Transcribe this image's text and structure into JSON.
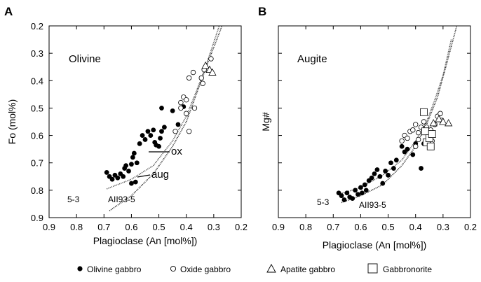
{
  "chart_data": [
    {
      "panel": "A",
      "type": "scatter",
      "title": "Olivine",
      "xlabel": "Plagioclase (An [mol%])",
      "ylabel": "Fo (mol%)",
      "x_reversed": true,
      "y_reversed": true,
      "xlim": [
        0.9,
        0.2
      ],
      "ylim": [
        0.9,
        0.2
      ],
      "xticks": [
        "0.9",
        "0.8",
        "0.7",
        "0.6",
        "0.5",
        "0.4",
        "0.3",
        "0.2"
      ],
      "yticks": [
        "0.2",
        "0.3",
        "0.4",
        "0.5",
        "0.6",
        "0.7",
        "0.8",
        "0.9"
      ],
      "series": [
        {
          "name": "Olivine gabbro",
          "marker": "filled-circle",
          "points": [
            [
              0.69,
              0.735
            ],
            [
              0.68,
              0.75
            ],
            [
              0.67,
              0.76
            ],
            [
              0.66,
              0.745
            ],
            [
              0.65,
              0.755
            ],
            [
              0.64,
              0.74
            ],
            [
              0.63,
              0.75
            ],
            [
              0.625,
              0.72
            ],
            [
              0.62,
              0.71
            ],
            [
              0.61,
              0.73
            ],
            [
              0.6,
              0.705
            ],
            [
              0.595,
              0.68
            ],
            [
              0.59,
              0.665
            ],
            [
              0.58,
              0.7
            ],
            [
              0.6,
              0.775
            ],
            [
              0.585,
              0.77
            ],
            [
              0.57,
              0.63
            ],
            [
              0.56,
              0.6
            ],
            [
              0.55,
              0.615
            ],
            [
              0.54,
              0.585
            ],
            [
              0.53,
              0.6
            ],
            [
              0.52,
              0.58
            ],
            [
              0.515,
              0.625
            ],
            [
              0.51,
              0.635
            ],
            [
              0.5,
              0.64
            ],
            [
              0.495,
              0.61
            ],
            [
              0.49,
              0.585
            ],
            [
              0.48,
              0.57
            ],
            [
              0.49,
              0.5
            ],
            [
              0.45,
              0.51
            ],
            [
              0.43,
              0.56
            ],
            [
              0.41,
              0.495
            ]
          ]
        },
        {
          "name": "Oxide gabbro",
          "marker": "open-circle",
          "points": [
            [
              0.39,
              0.39
            ],
            [
              0.375,
              0.37
            ],
            [
              0.345,
              0.39
            ],
            [
              0.34,
              0.41
            ],
            [
              0.42,
              0.48
            ],
            [
              0.41,
              0.46
            ],
            [
              0.4,
              0.47
            ],
            [
              0.42,
              0.5
            ],
            [
              0.4,
              0.52
            ],
            [
              0.44,
              0.585
            ],
            [
              0.39,
              0.585
            ],
            [
              0.37,
              0.5
            ],
            [
              0.31,
              0.32
            ],
            [
              0.335,
              0.36
            ]
          ]
        },
        {
          "name": "Apatite gabbro",
          "marker": "open-triangle",
          "points": [
            [
              0.33,
              0.345
            ],
            [
              0.315,
              0.36
            ],
            [
              0.305,
              0.37
            ]
          ]
        }
      ],
      "curves": [
        {
          "label": "5-3",
          "points": [
            [
              0.69,
              0.795
            ],
            [
              0.6,
              0.76
            ],
            [
              0.52,
              0.71
            ],
            [
              0.45,
              0.62
            ],
            [
              0.4,
              0.53
            ],
            [
              0.36,
              0.43
            ],
            [
              0.33,
              0.35
            ],
            [
              0.3,
              0.26
            ],
            [
              0.28,
              0.2
            ]
          ]
        },
        {
          "label": "AII93-5",
          "points": [
            [
              0.68,
              0.875
            ],
            [
              0.6,
              0.82
            ],
            [
              0.52,
              0.74
            ],
            [
              0.45,
              0.64
            ],
            [
              0.4,
              0.55
            ],
            [
              0.36,
              0.44
            ],
            [
              0.32,
              0.33
            ],
            [
              0.285,
              0.24
            ],
            [
              0.27,
              0.2
            ]
          ]
        }
      ],
      "annotations": [
        "ox",
        "aug"
      ]
    },
    {
      "panel": "B",
      "type": "scatter",
      "title": "Augite",
      "xlabel": "Plagioclase (An [mol%])",
      "ylabel": "Mg#",
      "x_reversed": true,
      "xlim": [
        0.9,
        0.2
      ],
      "xticks": [
        "0.9",
        "0.8",
        "0.7",
        "0.6",
        "0.5",
        "0.4",
        "0.3",
        "0.2"
      ],
      "series": [
        {
          "name": "Olivine gabbro",
          "marker": "filled-circle",
          "points": [
            [
              0.68,
              0.81
            ],
            [
              0.67,
              0.82
            ],
            [
              0.66,
              0.835
            ],
            [
              0.65,
              0.81
            ],
            [
              0.64,
              0.825
            ],
            [
              0.63,
              0.83
            ],
            [
              0.62,
              0.8
            ],
            [
              0.61,
              0.815
            ],
            [
              0.6,
              0.79
            ],
            [
              0.595,
              0.81
            ],
            [
              0.585,
              0.78
            ],
            [
              0.58,
              0.8
            ],
            [
              0.57,
              0.765
            ],
            [
              0.56,
              0.755
            ],
            [
              0.55,
              0.74
            ],
            [
              0.54,
              0.725
            ],
            [
              0.53,
              0.75
            ],
            [
              0.52,
              0.775
            ],
            [
              0.51,
              0.73
            ],
            [
              0.5,
              0.745
            ],
            [
              0.49,
              0.7
            ],
            [
              0.48,
              0.72
            ],
            [
              0.47,
              0.69
            ],
            [
              0.45,
              0.64
            ],
            [
              0.44,
              0.66
            ],
            [
              0.43,
              0.65
            ],
            [
              0.41,
              0.67
            ],
            [
              0.4,
              0.63
            ],
            [
              0.38,
              0.72
            ],
            [
              0.37,
              0.63
            ]
          ]
        },
        {
          "name": "Oxide gabbro",
          "marker": "open-circle",
          "points": [
            [
              0.45,
              0.62
            ],
            [
              0.44,
              0.6
            ],
            [
              0.43,
              0.61
            ],
            [
              0.42,
              0.585
            ],
            [
              0.41,
              0.58
            ],
            [
              0.4,
              0.56
            ],
            [
              0.39,
              0.59
            ],
            [
              0.38,
              0.57
            ],
            [
              0.37,
              0.55
            ],
            [
              0.36,
              0.57
            ],
            [
              0.35,
              0.6
            ],
            [
              0.345,
              0.58
            ],
            [
              0.33,
              0.56
            ],
            [
              0.32,
              0.53
            ],
            [
              0.31,
              0.52
            ],
            [
              0.305,
              0.545
            ],
            [
              0.4,
              0.64
            ],
            [
              0.39,
              0.615
            ],
            [
              0.355,
              0.63
            ],
            [
              0.34,
              0.62
            ]
          ]
        },
        {
          "name": "Apatite gabbro",
          "marker": "open-triangle",
          "points": [
            [
              0.335,
              0.555
            ],
            [
              0.315,
              0.54
            ],
            [
              0.3,
              0.55
            ],
            [
              0.28,
              0.555
            ]
          ]
        },
        {
          "name": "Gabbronorite",
          "marker": "open-square",
          "points": [
            [
              0.37,
              0.515
            ],
            [
              0.365,
              0.585
            ],
            [
              0.36,
              0.625
            ],
            [
              0.35,
              0.61
            ],
            [
              0.345,
              0.64
            ],
            [
              0.34,
              0.595
            ]
          ]
        }
      ],
      "curves": [
        {
          "label": "5-3",
          "points": [
            [
              0.68,
              0.815
            ],
            [
              0.6,
              0.79
            ],
            [
              0.52,
              0.745
            ],
            [
              0.45,
              0.69
            ],
            [
              0.4,
              0.62
            ],
            [
              0.36,
              0.55
            ],
            [
              0.33,
              0.47
            ],
            [
              0.3,
              0.38
            ],
            [
              0.27,
              0.25
            ]
          ]
        },
        {
          "label": "AII93-5",
          "points": [
            [
              0.67,
              0.845
            ],
            [
              0.6,
              0.82
            ],
            [
              0.52,
              0.78
            ],
            [
              0.45,
              0.71
            ],
            [
              0.4,
              0.64
            ],
            [
              0.36,
              0.56
            ],
            [
              0.32,
              0.46
            ],
            [
              0.29,
              0.35
            ],
            [
              0.25,
              0.2
            ]
          ]
        }
      ]
    }
  ],
  "legend": {
    "placement": "bottom",
    "items": [
      {
        "label": "Olivine gabbro",
        "marker": "filled-circle"
      },
      {
        "label": "Oxide gabbro",
        "marker": "open-circle"
      },
      {
        "label": "Apatite gabbro",
        "marker": "open-triangle"
      },
      {
        "label": "Gabbronorite",
        "marker": "open-square"
      }
    ]
  }
}
